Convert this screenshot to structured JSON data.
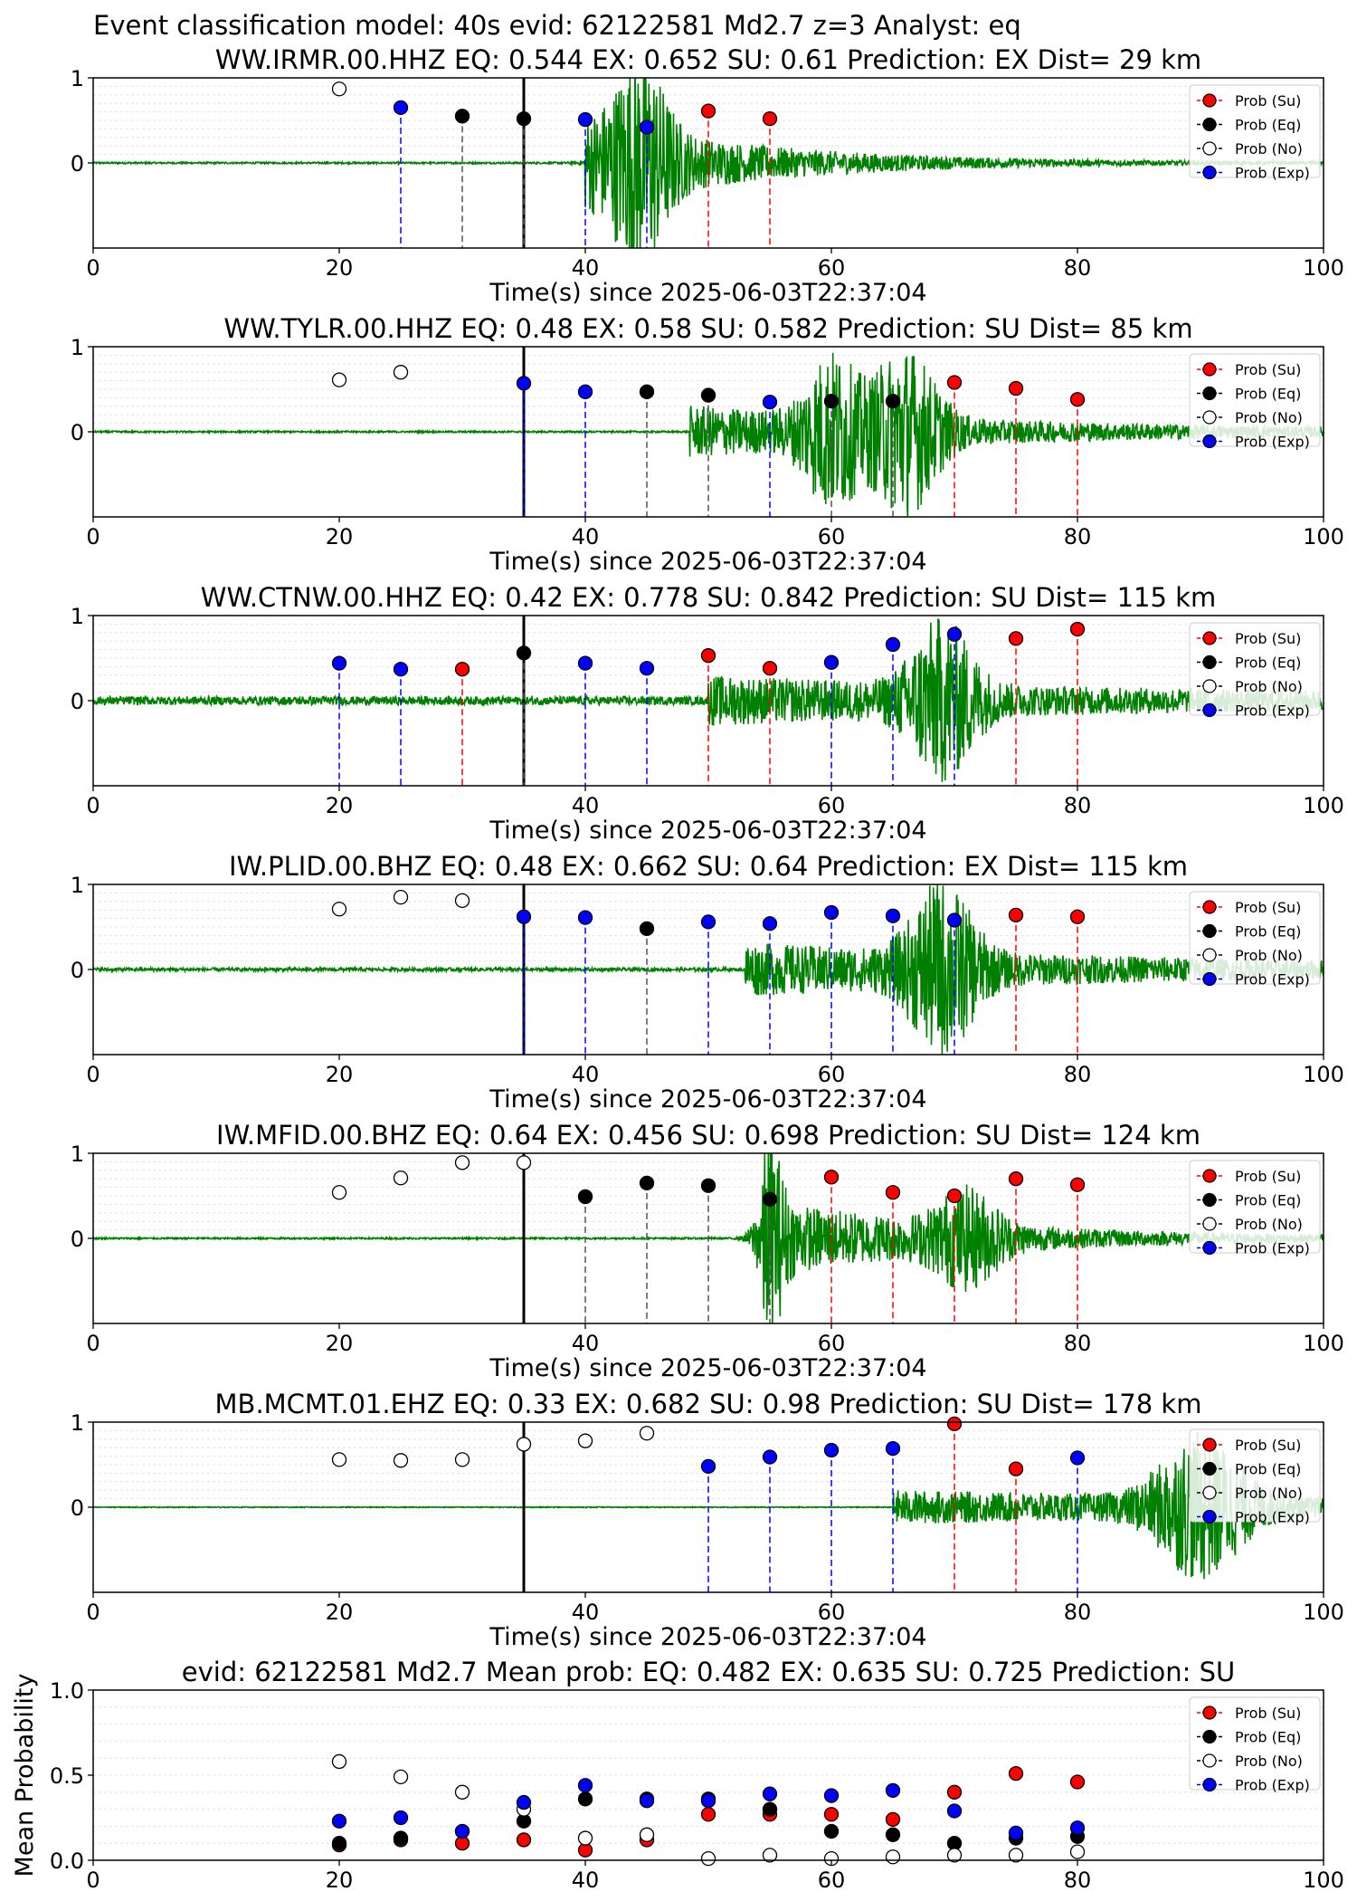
{
  "suptitle": "Event classification model: 40s evid: 62122581 Md2.7 z=3 Analyst: eq",
  "colors": {
    "su": "#ff0000",
    "eq": "#000000",
    "no": "#ffffff",
    "exp": "#0000ff",
    "waveform": "#008000"
  },
  "legend": [
    "Prob (Su)",
    "Prob (Eq)",
    "Prob (No)",
    "Prob (Exp)"
  ],
  "chart_data": [
    {
      "type": "scatter",
      "title": "WW.IRMR.00.HHZ   EQ: 0.544  EX: 0.652  SU: 0.61   Prediction: EX    Dist= 29 km",
      "xlabel": "Time(s) since 2025-06-03T22:37:04",
      "ylabel": "",
      "xlim": [
        0,
        100
      ],
      "ylim": [
        -1,
        1
      ],
      "xticks": [
        "0",
        "20",
        "40",
        "60",
        "80",
        "100"
      ],
      "yticks": [
        "0",
        "1"
      ],
      "origin_time": 35,
      "waveform": {
        "onset": 40,
        "amp": 0.55,
        "decay": 14,
        "bursts": [
          {
            "t": 44.5,
            "a": 0.9,
            "w": 2.5
          }
        ],
        "noise": 0.01
      },
      "points": [
        {
          "t": 20,
          "p": 0.87,
          "cls": "no"
        },
        {
          "t": 25,
          "p": 0.65,
          "cls": "exp"
        },
        {
          "t": 30,
          "p": 0.55,
          "cls": "eq"
        },
        {
          "t": 35,
          "p": 0.52,
          "cls": "eq"
        },
        {
          "t": 40,
          "p": 0.51,
          "cls": "exp"
        },
        {
          "t": 45,
          "p": 0.42,
          "cls": "exp"
        },
        {
          "t": 50,
          "p": 0.61,
          "cls": "su"
        },
        {
          "t": 55,
          "p": 0.52,
          "cls": "su"
        }
      ]
    },
    {
      "type": "scatter",
      "title": "WW.TYLR.00.HHZ   EQ: 0.48  EX: 0.58  SU: 0.582   Prediction: SU    Dist= 85 km",
      "xlabel": "Time(s) since 2025-06-03T22:37:04",
      "ylabel": "",
      "xlim": [
        0,
        100
      ],
      "ylim": [
        -1,
        1
      ],
      "xticks": [
        "0",
        "20",
        "40",
        "60",
        "80",
        "100"
      ],
      "yticks": [
        "0",
        "1"
      ],
      "origin_time": 35,
      "waveform": {
        "onset": 48.5,
        "amp": 0.3,
        "decay": 30,
        "bursts": [
          {
            "t": 60,
            "a": 0.75,
            "w": 2.5
          },
          {
            "t": 66,
            "a": 0.85,
            "w": 3
          }
        ],
        "noise": 0.01
      },
      "points": [
        {
          "t": 20,
          "p": 0.61,
          "cls": "no"
        },
        {
          "t": 25,
          "p": 0.7,
          "cls": "no"
        },
        {
          "t": 35,
          "p": 0.57,
          "cls": "exp"
        },
        {
          "t": 40,
          "p": 0.47,
          "cls": "exp"
        },
        {
          "t": 45,
          "p": 0.47,
          "cls": "eq"
        },
        {
          "t": 50,
          "p": 0.43,
          "cls": "eq"
        },
        {
          "t": 55,
          "p": 0.35,
          "cls": "exp"
        },
        {
          "t": 60,
          "p": 0.36,
          "cls": "eq"
        },
        {
          "t": 65,
          "p": 0.36,
          "cls": "eq"
        },
        {
          "t": 70,
          "p": 0.58,
          "cls": "su"
        },
        {
          "t": 75,
          "p": 0.51,
          "cls": "su"
        },
        {
          "t": 80,
          "p": 0.38,
          "cls": "su"
        }
      ]
    },
    {
      "type": "scatter",
      "title": "WW.CTNW.00.HHZ   EQ: 0.42  EX: 0.778  SU: 0.842   Prediction: SU    Dist= 115 km",
      "xlabel": "Time(s) since 2025-06-03T22:37:04",
      "ylabel": "",
      "xlim": [
        0,
        100
      ],
      "ylim": [
        -1,
        1
      ],
      "xticks": [
        "0",
        "20",
        "40",
        "60",
        "80",
        "100"
      ],
      "yticks": [
        "0",
        "1"
      ],
      "origin_time": 35,
      "waveform": {
        "onset": 50,
        "amp": 0.25,
        "decay": 40,
        "bursts": [
          {
            "t": 69,
            "a": 0.8,
            "w": 3
          }
        ],
        "noise": 0.05
      },
      "points": [
        {
          "t": 20,
          "p": 0.44,
          "cls": "exp"
        },
        {
          "t": 25,
          "p": 0.37,
          "cls": "exp"
        },
        {
          "t": 30,
          "p": 0.37,
          "cls": "su"
        },
        {
          "t": 35,
          "p": 0.56,
          "cls": "eq"
        },
        {
          "t": 40,
          "p": 0.44,
          "cls": "exp"
        },
        {
          "t": 45,
          "p": 0.38,
          "cls": "exp"
        },
        {
          "t": 50,
          "p": 0.53,
          "cls": "su"
        },
        {
          "t": 55,
          "p": 0.38,
          "cls": "su"
        },
        {
          "t": 60,
          "p": 0.45,
          "cls": "exp"
        },
        {
          "t": 65,
          "p": 0.66,
          "cls": "exp"
        },
        {
          "t": 70,
          "p": 0.78,
          "cls": "exp"
        },
        {
          "t": 75,
          "p": 0.73,
          "cls": "su"
        },
        {
          "t": 80,
          "p": 0.84,
          "cls": "su"
        }
      ]
    },
    {
      "type": "scatter",
      "title": "IW.PLID.00.BHZ   EQ: 0.48  EX: 0.662  SU: 0.64   Prediction: EX    Dist= 115 km",
      "xlabel": "Time(s) since 2025-06-03T22:37:04",
      "ylabel": "",
      "xlim": [
        0,
        100
      ],
      "ylim": [
        -1,
        1
      ],
      "xticks": [
        "0",
        "20",
        "40",
        "60",
        "80",
        "100"
      ],
      "yticks": [
        "0",
        "1"
      ],
      "origin_time": 35,
      "waveform": {
        "onset": 53,
        "amp": 0.3,
        "decay": 40,
        "bursts": [
          {
            "t": 69,
            "a": 0.85,
            "w": 3
          }
        ],
        "noise": 0.02
      },
      "points": [
        {
          "t": 20,
          "p": 0.71,
          "cls": "no"
        },
        {
          "t": 25,
          "p": 0.85,
          "cls": "no"
        },
        {
          "t": 30,
          "p": 0.81,
          "cls": "no"
        },
        {
          "t": 35,
          "p": 0.62,
          "cls": "exp"
        },
        {
          "t": 40,
          "p": 0.61,
          "cls": "exp"
        },
        {
          "t": 45,
          "p": 0.48,
          "cls": "eq"
        },
        {
          "t": 50,
          "p": 0.56,
          "cls": "exp"
        },
        {
          "t": 55,
          "p": 0.54,
          "cls": "exp"
        },
        {
          "t": 60,
          "p": 0.67,
          "cls": "exp"
        },
        {
          "t": 65,
          "p": 0.63,
          "cls": "exp"
        },
        {
          "t": 70,
          "p": 0.58,
          "cls": "exp"
        },
        {
          "t": 75,
          "p": 0.64,
          "cls": "su"
        },
        {
          "t": 80,
          "p": 0.62,
          "cls": "su"
        }
      ]
    },
    {
      "type": "scatter",
      "title": "IW.MFID.00.BHZ   EQ: 0.64  EX: 0.456  SU: 0.698   Prediction: SU    Dist= 124 km",
      "xlabel": "Time(s) since 2025-06-03T22:37:04",
      "ylabel": "",
      "xlim": [
        0,
        100
      ],
      "ylim": [
        -1,
        1
      ],
      "xticks": [
        "0",
        "20",
        "40",
        "60",
        "80",
        "100"
      ],
      "yticks": [
        "0",
        "1"
      ],
      "origin_time": 35,
      "waveform": {
        "onset": 54.5,
        "amp": 0.45,
        "decay": 18,
        "bursts": [
          {
            "t": 55,
            "a": 0.8,
            "w": 1.2
          },
          {
            "t": 71,
            "a": 0.45,
            "w": 3
          }
        ],
        "noise": 0.01
      },
      "points": [
        {
          "t": 20,
          "p": 0.54,
          "cls": "no"
        },
        {
          "t": 25,
          "p": 0.71,
          "cls": "no"
        },
        {
          "t": 30,
          "p": 0.89,
          "cls": "no"
        },
        {
          "t": 35,
          "p": 0.89,
          "cls": "no"
        },
        {
          "t": 40,
          "p": 0.49,
          "cls": "eq"
        },
        {
          "t": 45,
          "p": 0.65,
          "cls": "eq"
        },
        {
          "t": 50,
          "p": 0.62,
          "cls": "eq"
        },
        {
          "t": 55,
          "p": 0.46,
          "cls": "eq"
        },
        {
          "t": 60,
          "p": 0.72,
          "cls": "su"
        },
        {
          "t": 65,
          "p": 0.54,
          "cls": "su"
        },
        {
          "t": 70,
          "p": 0.5,
          "cls": "su"
        },
        {
          "t": 75,
          "p": 0.7,
          "cls": "su"
        },
        {
          "t": 80,
          "p": 0.63,
          "cls": "su"
        }
      ]
    },
    {
      "type": "scatter",
      "title": "MB.MCMT.01.EHZ   EQ: 0.33  EX: 0.682  SU: 0.98   Prediction: SU    Dist= 178 km",
      "xlabel": "Time(s) since 2025-06-03T22:37:04",
      "ylabel": "",
      "xlim": [
        0,
        100
      ],
      "ylim": [
        -1,
        1
      ],
      "xticks": [
        "0",
        "20",
        "40",
        "60",
        "80",
        "100"
      ],
      "yticks": [
        "0",
        "1"
      ],
      "origin_time": 35,
      "waveform": {
        "onset": 65,
        "amp": 0.2,
        "decay": 60,
        "bursts": [
          {
            "t": 90,
            "a": 0.75,
            "w": 4
          }
        ],
        "noise": 0.005
      },
      "points": [
        {
          "t": 20,
          "p": 0.56,
          "cls": "no"
        },
        {
          "t": 25,
          "p": 0.55,
          "cls": "no"
        },
        {
          "t": 30,
          "p": 0.56,
          "cls": "no"
        },
        {
          "t": 35,
          "p": 0.74,
          "cls": "no"
        },
        {
          "t": 40,
          "p": 0.78,
          "cls": "no"
        },
        {
          "t": 45,
          "p": 0.87,
          "cls": "no"
        },
        {
          "t": 50,
          "p": 0.48,
          "cls": "exp"
        },
        {
          "t": 55,
          "p": 0.59,
          "cls": "exp"
        },
        {
          "t": 60,
          "p": 0.67,
          "cls": "exp"
        },
        {
          "t": 65,
          "p": 0.69,
          "cls": "exp"
        },
        {
          "t": 70,
          "p": 0.98,
          "cls": "su"
        },
        {
          "t": 75,
          "p": 0.45,
          "cls": "su"
        },
        {
          "t": 80,
          "p": 0.58,
          "cls": "exp"
        }
      ]
    },
    {
      "type": "scatter",
      "title": "evid: 62122581  Md2.7   Mean prob:   EQ: 0.482  EX: 0.635  SU: 0.725   Prediction: SU",
      "xlabel": "",
      "ylabel": "Mean Probability",
      "xlim": [
        0,
        100
      ],
      "ylim": [
        0,
        1
      ],
      "xticks": [
        "0",
        "20",
        "40",
        "60",
        "80",
        "100"
      ],
      "yticks": [
        "0.0",
        "0.5",
        "1.0"
      ],
      "series": [
        {
          "name": "Prob (Su)",
          "cls": "su",
          "x": [
            20,
            25,
            30,
            35,
            40,
            45,
            50,
            55,
            60,
            65,
            70,
            75,
            80
          ],
          "y": [
            0.09,
            0.12,
            0.1,
            0.12,
            0.06,
            0.12,
            0.27,
            0.27,
            0.27,
            0.24,
            0.4,
            0.51,
            0.46
          ]
        },
        {
          "name": "Prob (Eq)",
          "cls": "eq",
          "x": [
            20,
            25,
            30,
            35,
            40,
            45,
            50,
            55,
            60,
            65,
            70,
            75,
            80
          ],
          "y": [
            0.1,
            0.13,
            0.17,
            0.23,
            0.36,
            0.36,
            0.36,
            0.3,
            0.17,
            0.15,
            0.1,
            0.13,
            0.14
          ]
        },
        {
          "name": "Prob (No)",
          "cls": "no",
          "x": [
            20,
            25,
            30,
            35,
            40,
            45,
            50,
            55,
            60,
            65,
            70,
            75,
            80
          ],
          "y": [
            0.58,
            0.49,
            0.4,
            0.3,
            0.13,
            0.15,
            0.01,
            0.03,
            0.01,
            0.02,
            0.03,
            0.03,
            0.05
          ]
        },
        {
          "name": "Prob (Exp)",
          "cls": "exp",
          "x": [
            20,
            25,
            30,
            35,
            40,
            45,
            50,
            55,
            60,
            65,
            70,
            75,
            80
          ],
          "y": [
            0.23,
            0.25,
            0.17,
            0.34,
            0.44,
            0.35,
            0.35,
            0.39,
            0.38,
            0.41,
            0.29,
            0.16,
            0.19
          ]
        }
      ]
    }
  ]
}
